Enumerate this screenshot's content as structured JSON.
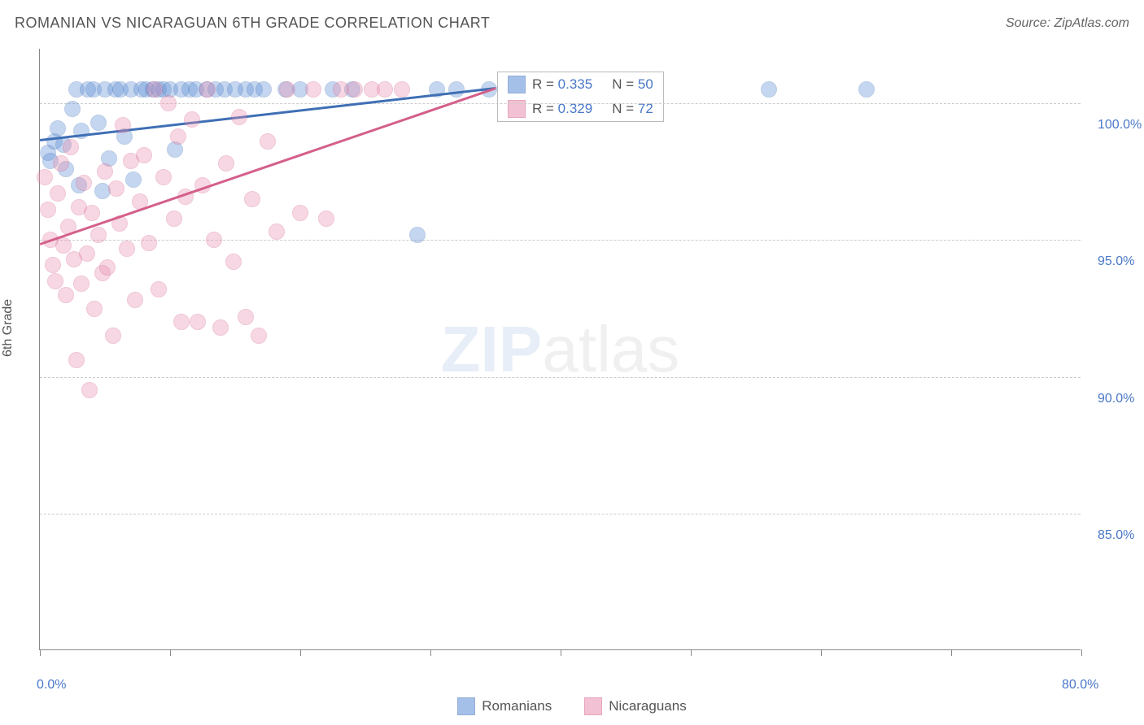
{
  "title": "ROMANIAN VS NICARAGUAN 6TH GRADE CORRELATION CHART",
  "source": "Source: ZipAtlas.com",
  "ylabel": "6th Grade",
  "chart": {
    "type": "scatter",
    "xlim": [
      0,
      80
    ],
    "ylim": [
      80,
      102
    ],
    "x_ticks": [
      0,
      10,
      20,
      30,
      40,
      50,
      60,
      70,
      80
    ],
    "x_tick_labels_shown": {
      "0": "0.0%",
      "80": "80.0%"
    },
    "y_gridlines": [
      85,
      90,
      95,
      100
    ],
    "y_tick_labels": {
      "85": "85.0%",
      "90": "90.0%",
      "95": "95.0%",
      "100": "100.0%"
    },
    "background_color": "#ffffff",
    "grid_color": "#cccccc",
    "axis_color": "#888888",
    "tick_label_color": "#4a78c8",
    "marker_radius": 10,
    "marker_opacity": 0.35,
    "series": [
      {
        "name": "Romanians",
        "color": "#5b8dd6",
        "stroke": "#3f6fb5",
        "R": "0.335",
        "N": "50",
        "trend": {
          "x1": 0,
          "y1": 98.7,
          "x2": 35,
          "y2": 100.6
        },
        "points": [
          [
            0.6,
            98.2
          ],
          [
            0.8,
            97.9
          ],
          [
            1.1,
            98.6
          ],
          [
            1.4,
            99.1
          ],
          [
            1.8,
            98.5
          ],
          [
            2.0,
            97.6
          ],
          [
            2.5,
            99.8
          ],
          [
            2.8,
            100.5
          ],
          [
            3.0,
            97.0
          ],
          [
            3.2,
            99.0
          ],
          [
            3.7,
            100.5
          ],
          [
            4.1,
            100.5
          ],
          [
            4.5,
            99.3
          ],
          [
            4.8,
            96.8
          ],
          [
            5.0,
            100.5
          ],
          [
            5.3,
            98.0
          ],
          [
            5.8,
            100.5
          ],
          [
            6.2,
            100.5
          ],
          [
            6.5,
            98.8
          ],
          [
            7.0,
            100.5
          ],
          [
            7.2,
            97.2
          ],
          [
            7.8,
            100.5
          ],
          [
            8.2,
            100.5
          ],
          [
            8.7,
            100.5
          ],
          [
            9.1,
            100.5
          ],
          [
            9.5,
            100.5
          ],
          [
            10.0,
            100.5
          ],
          [
            10.4,
            98.3
          ],
          [
            10.9,
            100.5
          ],
          [
            11.5,
            100.5
          ],
          [
            12.0,
            100.5
          ],
          [
            12.8,
            100.5
          ],
          [
            13.5,
            100.5
          ],
          [
            14.2,
            100.5
          ],
          [
            15.0,
            100.5
          ],
          [
            15.8,
            100.5
          ],
          [
            16.5,
            100.5
          ],
          [
            17.2,
            100.5
          ],
          [
            18.9,
            100.5
          ],
          [
            20.0,
            100.5
          ],
          [
            22.5,
            100.5
          ],
          [
            24.0,
            100.5
          ],
          [
            29.0,
            95.2
          ],
          [
            30.5,
            100.5
          ],
          [
            32.0,
            100.5
          ],
          [
            34.5,
            100.5
          ],
          [
            56.0,
            100.5
          ],
          [
            63.5,
            100.5
          ]
        ]
      },
      {
        "name": "Nicaraguans",
        "color": "#e98fb0",
        "stroke": "#d45f8a",
        "R": "0.329",
        "N": "72",
        "trend": {
          "x1": 0,
          "y1": 94.9,
          "x2": 35,
          "y2": 100.6
        },
        "points": [
          [
            0.4,
            97.3
          ],
          [
            0.6,
            96.1
          ],
          [
            0.8,
            95.0
          ],
          [
            1.0,
            94.1
          ],
          [
            1.2,
            93.5
          ],
          [
            1.4,
            96.7
          ],
          [
            1.6,
            97.8
          ],
          [
            1.8,
            94.8
          ],
          [
            2.0,
            93.0
          ],
          [
            2.2,
            95.5
          ],
          [
            2.4,
            98.4
          ],
          [
            2.6,
            94.3
          ],
          [
            2.8,
            90.6
          ],
          [
            3.0,
            96.2
          ],
          [
            3.2,
            93.4
          ],
          [
            3.4,
            97.1
          ],
          [
            3.6,
            94.5
          ],
          [
            3.8,
            89.5
          ],
          [
            4.0,
            96.0
          ],
          [
            4.2,
            92.5
          ],
          [
            4.5,
            95.2
          ],
          [
            4.8,
            93.8
          ],
          [
            5.0,
            97.5
          ],
          [
            5.2,
            94.0
          ],
          [
            5.6,
            91.5
          ],
          [
            5.9,
            96.9
          ],
          [
            6.1,
            95.6
          ],
          [
            6.4,
            99.2
          ],
          [
            6.7,
            94.7
          ],
          [
            7.0,
            97.9
          ],
          [
            7.3,
            92.8
          ],
          [
            7.7,
            96.4
          ],
          [
            8.0,
            98.1
          ],
          [
            8.4,
            94.9
          ],
          [
            8.8,
            100.5
          ],
          [
            9.1,
            93.2
          ],
          [
            9.5,
            97.3
          ],
          [
            9.9,
            100.0
          ],
          [
            10.3,
            95.8
          ],
          [
            10.6,
            98.8
          ],
          [
            10.9,
            92.0
          ],
          [
            11.2,
            96.6
          ],
          [
            11.7,
            99.4
          ],
          [
            12.1,
            92.0
          ],
          [
            12.5,
            97.0
          ],
          [
            12.9,
            100.5
          ],
          [
            13.4,
            95.0
          ],
          [
            13.9,
            91.8
          ],
          [
            14.3,
            97.8
          ],
          [
            14.9,
            94.2
          ],
          [
            15.3,
            99.5
          ],
          [
            15.8,
            92.2
          ],
          [
            16.3,
            96.5
          ],
          [
            16.8,
            91.5
          ],
          [
            17.5,
            98.6
          ],
          [
            18.2,
            95.3
          ],
          [
            19.0,
            100.5
          ],
          [
            20.0,
            96.0
          ],
          [
            21.0,
            100.5
          ],
          [
            22.0,
            95.8
          ],
          [
            23.1,
            100.5
          ],
          [
            24.2,
            100.5
          ],
          [
            25.5,
            100.5
          ],
          [
            26.5,
            100.5
          ],
          [
            27.8,
            100.5
          ]
        ]
      }
    ]
  },
  "watermark": {
    "part1": "ZIP",
    "part2": "atlas"
  },
  "stats_box": {
    "r_label": "R = ",
    "n_label": "N = "
  }
}
